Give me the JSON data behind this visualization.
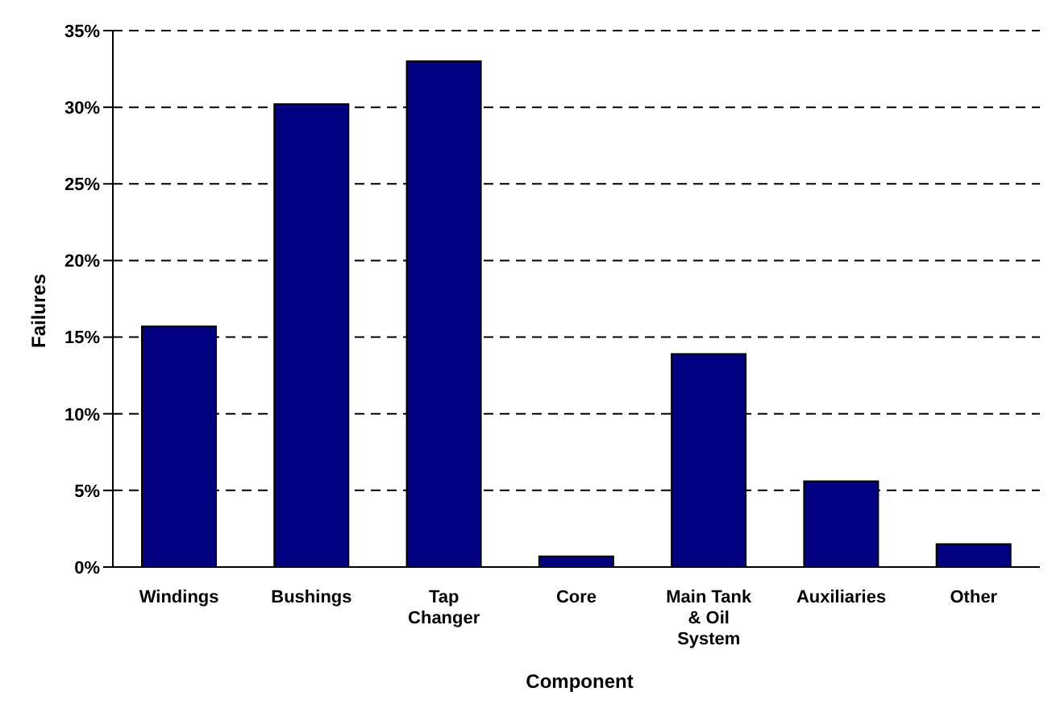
{
  "chart_data": {
    "type": "bar",
    "xlabel": "Component",
    "ylabel": "Failures",
    "categories": [
      "Windings",
      "Bushings",
      "Tap\nChanger",
      "Core",
      "Main Tank\n& Oil\nSystem",
      "Auxiliaries",
      "Other"
    ],
    "values": [
      15.7,
      30.2,
      33.0,
      0.7,
      13.9,
      5.6,
      1.5
    ],
    "color": "#000080",
    "ylim": [
      0,
      35
    ],
    "yticks": [
      {
        "value": 0,
        "label": "0%"
      },
      {
        "value": 5,
        "label": "5%"
      },
      {
        "value": 10,
        "label": "10%"
      },
      {
        "value": 15,
        "label": "15%"
      },
      {
        "value": 20,
        "label": "20%"
      },
      {
        "value": 25,
        "label": "25%"
      },
      {
        "value": 30,
        "label": "30%"
      },
      {
        "value": 35,
        "label": "35%"
      }
    ],
    "grid": "y"
  }
}
